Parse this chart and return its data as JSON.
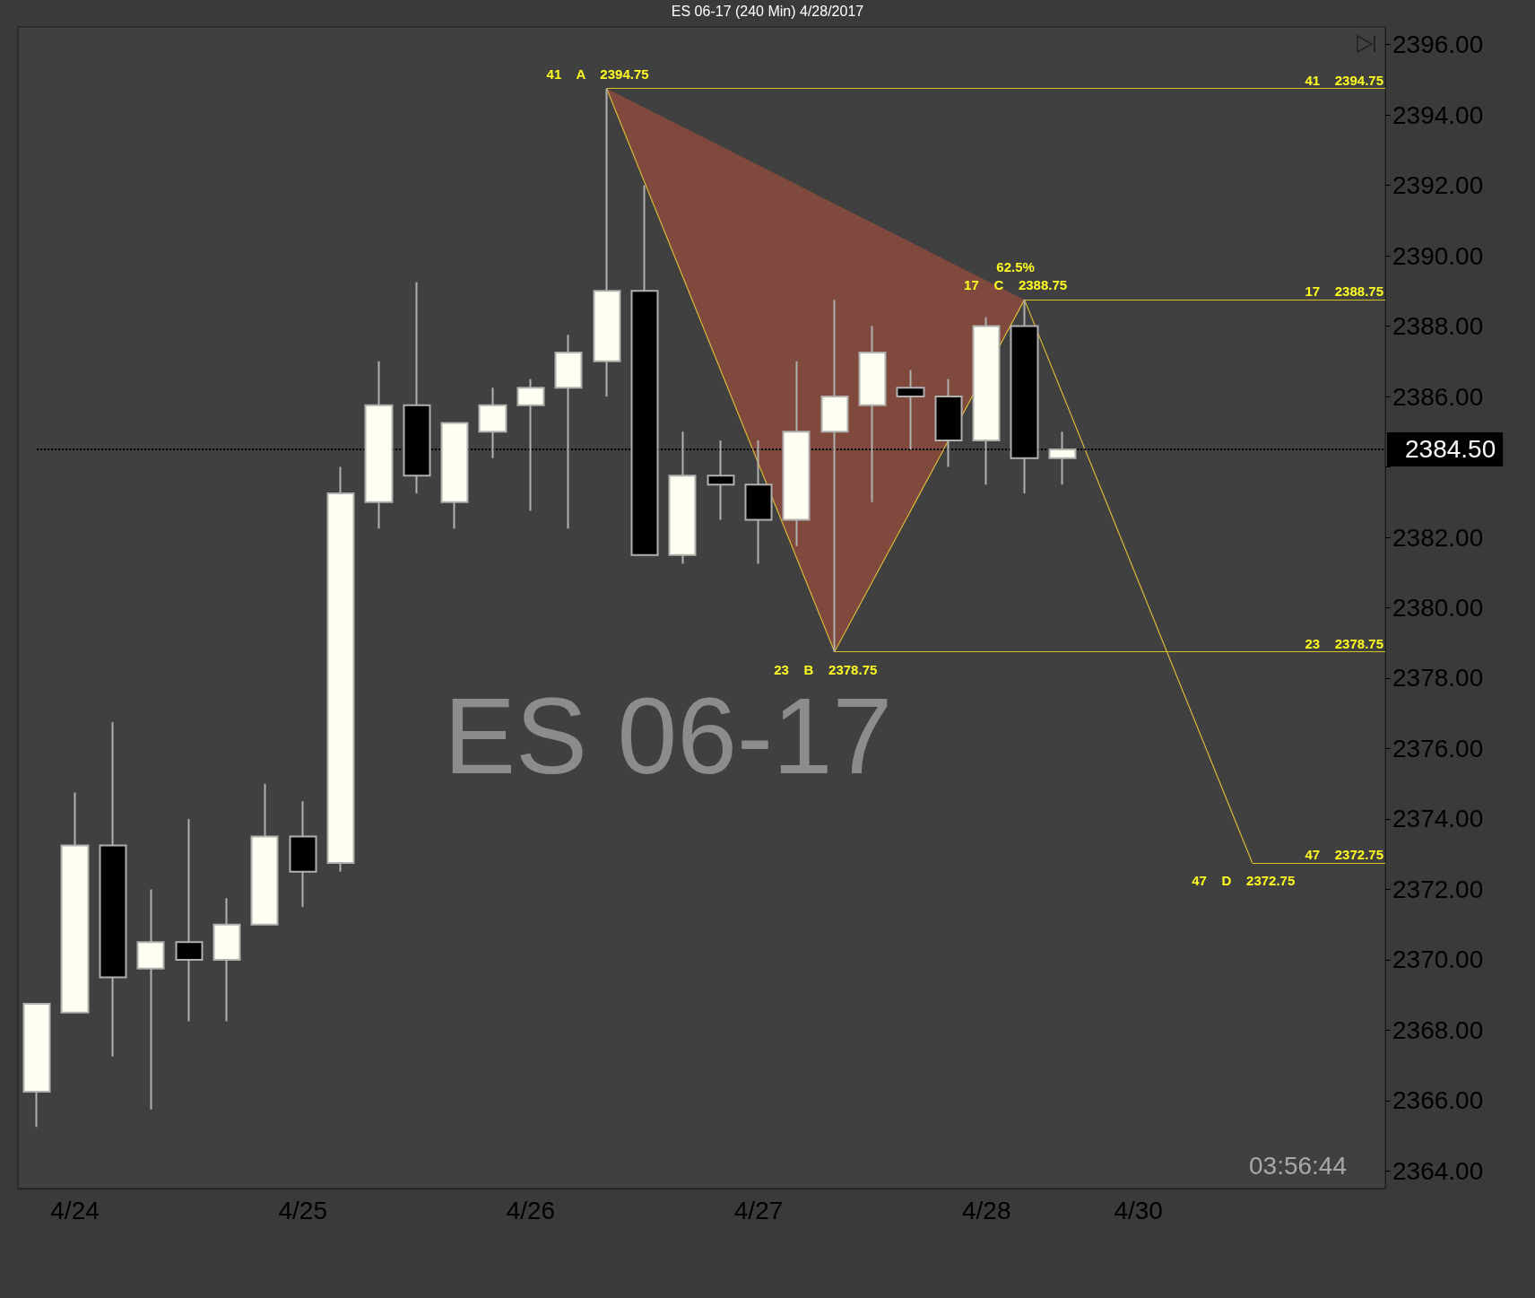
{
  "chart_data": {
    "type": "candlestick",
    "title": "ES 06-17 (240 Min)  4/28/2017",
    "categories": [
      null,
      "4/24",
      null,
      null,
      null,
      null,
      null,
      "4/25",
      null,
      null,
      null,
      null,
      null,
      "4/26",
      null,
      null,
      null,
      null,
      null,
      "4/27",
      null,
      null,
      null,
      null,
      null,
      "4/28",
      null,
      null,
      null,
      "4/30",
      null,
      null,
      null,
      null,
      null,
      null
    ],
    "ohlc": [
      [
        2366.25,
        2368.75,
        2365.25,
        2368.75
      ],
      [
        2368.5,
        2374.75,
        2368.5,
        2373.25
      ],
      [
        2373.25,
        2376.75,
        2367.25,
        2369.5
      ],
      [
        2369.75,
        2372,
        2365.75,
        2370.5
      ],
      [
        2370.5,
        2374,
        2368.25,
        2370
      ],
      [
        2370,
        2371.75,
        2368.25,
        2371
      ],
      [
        2371,
        2375,
        2371,
        2373.5
      ],
      [
        2373.5,
        2374.5,
        2371.5,
        2372.5
      ],
      [
        2372.75,
        2384,
        2372.5,
        2383.25
      ],
      [
        2383,
        2387,
        2382.25,
        2385.75
      ],
      [
        2385.75,
        2389.25,
        2383.25,
        2383.75
      ],
      [
        2383,
        2385.25,
        2382.25,
        2385.25
      ],
      [
        2385,
        2386.25,
        2384.25,
        2385.75
      ],
      [
        2385.75,
        2386.5,
        2382.75,
        2386.25
      ],
      [
        2386.25,
        2387.75,
        2382.25,
        2387.25
      ],
      [
        2387,
        2394.75,
        2386,
        2389
      ],
      [
        2389,
        2392,
        2381.5,
        2381.5
      ],
      [
        2381.5,
        2385,
        2381.25,
        2383.75
      ],
      [
        2383.75,
        2384.75,
        2382.5,
        2383.5
      ],
      [
        2383.5,
        2384.75,
        2381.25,
        2382.5
      ],
      [
        2382.5,
        2387,
        2381.75,
        2385
      ],
      [
        2385,
        2388.75,
        2378.75,
        2386
      ],
      [
        2385.75,
        2388,
        2383,
        2387.25
      ],
      [
        2386.25,
        2386.75,
        2384.5,
        2386
      ],
      [
        2386,
        2386.5,
        2384,
        2384.75
      ],
      [
        2384.75,
        2388.25,
        2383.5,
        2388
      ],
      [
        2388,
        2388.75,
        2383.25,
        2384.25
      ],
      [
        2384.25,
        2385,
        2383.5,
        2384.5
      ],
      null,
      null,
      null,
      null,
      null,
      null,
      null,
      null
    ],
    "series": [
      {
        "type": "line",
        "color": "#d8b838",
        "values": [
          null,
          null,
          null,
          null,
          null,
          null,
          null,
          null,
          null,
          null,
          null,
          null,
          null,
          null,
          null,
          2394.75,
          null,
          null,
          null,
          null,
          null,
          2378.75,
          null,
          null,
          null,
          null,
          2388.75,
          null,
          null,
          null,
          null,
          null,
          2372.75,
          null,
          null,
          null
        ]
      }
    ],
    "ylim": [
      2363.5,
      2396.5
    ],
    "yticks": [
      {
        "value": 2364,
        "label": "2364.00"
      },
      {
        "value": 2366,
        "label": "2366.00"
      },
      {
        "value": 2368,
        "label": "2368.00"
      },
      {
        "value": 2370,
        "label": "2370.00"
      },
      {
        "value": 2372,
        "label": "2372.00"
      },
      {
        "value": 2374,
        "label": "2374.00"
      },
      {
        "value": 2376,
        "label": "2376.00"
      },
      {
        "value": 2378,
        "label": "2378.00"
      },
      {
        "value": 2380,
        "label": "2380.00"
      },
      {
        "value": 2382,
        "label": "2382.00"
      },
      {
        "value": 2384,
        "label": null
      },
      {
        "value": 2386,
        "label": "2386.00"
      },
      {
        "value": 2388,
        "label": "2388.00"
      },
      {
        "value": 2390,
        "label": "2390.00"
      },
      {
        "value": 2392,
        "label": "2392.00"
      },
      {
        "value": 2394,
        "label": "2394.00"
      },
      {
        "value": 2396,
        "label": "2396.00"
      }
    ],
    "ref_lines": [
      {
        "axis": "y",
        "value": 2394.75,
        "label": "41    2394.75",
        "color": "#d8c020"
      },
      {
        "axis": "y",
        "value": 2388.75,
        "label": "17    2388.75",
        "color": "#d8c020"
      },
      {
        "axis": "y",
        "value": 2378.75,
        "label": "23    2378.75",
        "color": "#d8c020"
      },
      {
        "axis": "y",
        "value": 2372.75,
        "label": "47    2372.75",
        "color": "#d8c020"
      },
      {
        "axis": "y",
        "value": 2384.5,
        "label": "2384.50",
        "color": "#000000",
        "line_style": "dotted"
      }
    ],
    "annotations": [
      "ES 06-17",
      "03:56:44",
      "41    A    2394.75",
      "23    B    2378.75",
      "17    C    2388.75",
      "47    D    2372.75",
      "62.5%"
    ],
    "grid": false
  }
}
